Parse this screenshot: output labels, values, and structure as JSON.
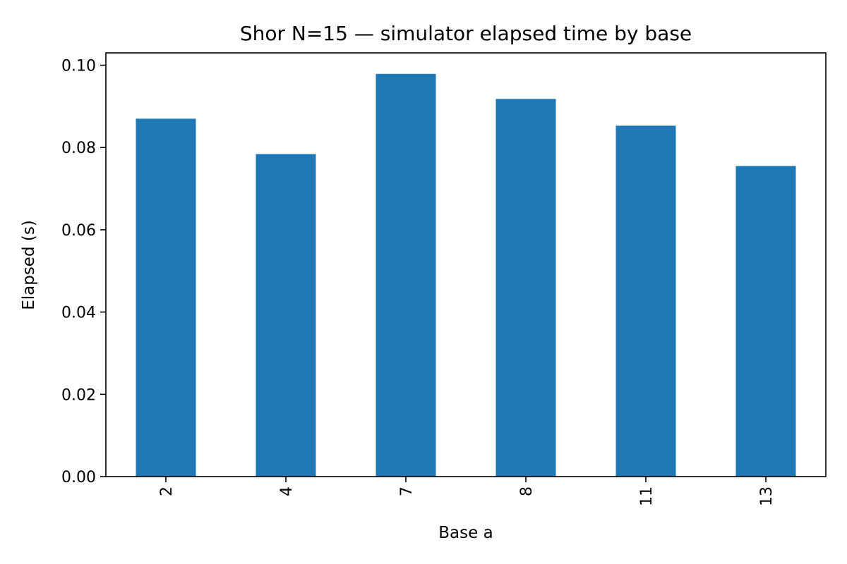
{
  "chart_data": {
    "type": "bar",
    "title": "Shor N=15 — simulator elapsed time by base",
    "xlabel": "Base a",
    "ylabel": "Elapsed (s)",
    "categories": [
      "2",
      "4",
      "7",
      "8",
      "11",
      "13"
    ],
    "values": [
      0.087,
      0.0784,
      0.0979,
      0.0918,
      0.0853,
      0.0755
    ],
    "ylim": [
      0,
      0.103
    ],
    "yticks": [
      0.0,
      0.02,
      0.04,
      0.06,
      0.08,
      0.1
    ],
    "ytick_labels": [
      "0.00",
      "0.02",
      "0.04",
      "0.06",
      "0.08",
      "0.10"
    ],
    "grid": false,
    "legend": "none",
    "bar_color": "#1f77b4",
    "xtick_rotation": "vertical"
  }
}
